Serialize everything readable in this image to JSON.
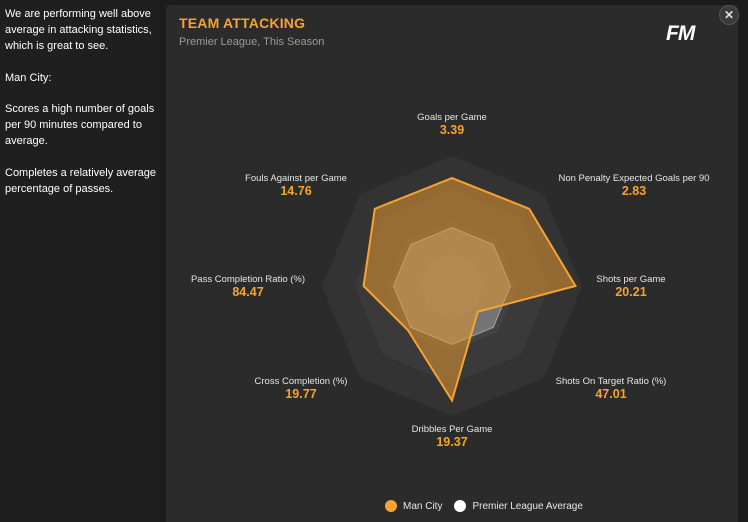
{
  "analysis": {
    "p1": "We are performing well above average in attacking statistics, which is great to see.",
    "p2": "Man City:",
    "p3": "Scores a high number of goals per 90 minutes compared to average.",
    "p4": "Completes a relatively average percentage of passes."
  },
  "card": {
    "title": "TEAM ATTACKING",
    "subtitle": "Premier League, This Season",
    "logo": "FM",
    "close_icon": "close-icon"
  },
  "chart_data": {
    "type": "radar",
    "axes": [
      {
        "label": "Goals per Game",
        "value": "3.39"
      },
      {
        "label": "Non Penalty Expected Goals per 90",
        "value": "2.83"
      },
      {
        "label": "Shots per Game",
        "value": "20.21"
      },
      {
        "label": "Shots On Target Ratio (%)",
        "value": "47.01"
      },
      {
        "label": "Dribbles Per Game",
        "value": "19.37"
      },
      {
        "label": "Cross Completion (%)",
        "value": "19.77"
      },
      {
        "label": "Pass Completion Ratio (%)",
        "value": "84.47"
      },
      {
        "label": "Fouls Against per Game",
        "value": "14.76"
      }
    ],
    "series": [
      {
        "name": "Man City",
        "color": "#f5a331",
        "values": [
          0.83,
          0.84,
          0.95,
          0.28,
          0.88,
          0.48,
          0.68,
          0.84
        ]
      },
      {
        "name": "Premier League Average",
        "color": "#ffffff",
        "values": [
          0.45,
          0.45,
          0.45,
          0.45,
          0.45,
          0.45,
          0.45,
          0.45
        ]
      }
    ],
    "scale": [
      0,
      1
    ]
  },
  "legend": {
    "items": [
      {
        "label": "Man City",
        "color": "#f5a331"
      },
      {
        "label": "Premier League Average",
        "color": "#ffffff"
      }
    ]
  }
}
